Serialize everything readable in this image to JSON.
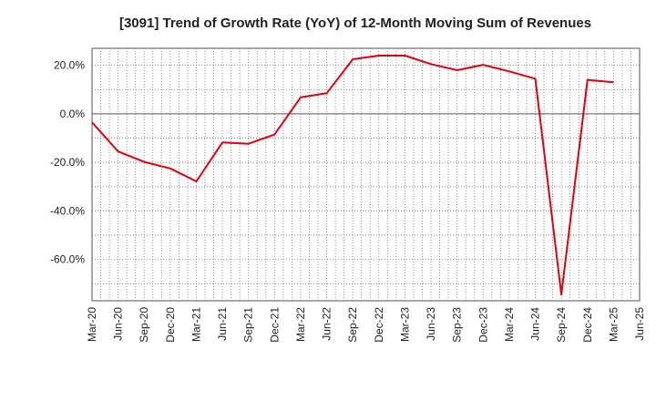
{
  "chart_data": {
    "type": "line",
    "title": "[3091]  Trend of Growth Rate (YoY) of 12-Month Moving Sum of Revenues",
    "xlabel": "",
    "ylabel": "",
    "x_tick_labels": [
      "Mar-20",
      "Jun-20",
      "Sep-20",
      "Dec-20",
      "Mar-21",
      "Jun-21",
      "Sep-21",
      "Dec-21",
      "Mar-22",
      "Jun-22",
      "Sep-22",
      "Dec-22",
      "Mar-23",
      "Jun-23",
      "Sep-23",
      "Dec-23",
      "Mar-24",
      "Jun-24",
      "Sep-24",
      "Dec-24",
      "Mar-25",
      "Jun-25"
    ],
    "y_ticks": [
      20,
      0,
      -20,
      -40,
      -60
    ],
    "y_tick_labels": [
      "20.0%",
      "0.0%",
      "-20.0%",
      "-40.0%",
      "-60.0%"
    ],
    "ylim": [
      -77,
      27
    ],
    "grid": true,
    "line_color": "#e3000f",
    "series": [
      {
        "x": [
          "Mar-20",
          "Jun-20",
          "Sep-20",
          "Dec-20",
          "Mar-21",
          "Jun-21",
          "Sep-21",
          "Dec-21",
          "Mar-22",
          "Jun-22",
          "Sep-22",
          "Dec-22",
          "Mar-23",
          "Jun-23",
          "Sep-23",
          "Dec-23",
          "Mar-24",
          "Jun-24",
          "Sep-24",
          "Dec-24",
          "Mar-25"
        ],
        "values": [
          -3.5,
          -15.5,
          -19.8,
          -22.5,
          -27.8,
          -11.8,
          -12.3,
          -8.5,
          6.8,
          8.5,
          22.5,
          24.0,
          24.0,
          20.5,
          18.0,
          20.2,
          17.5,
          14.5,
          -74.5,
          14.0,
          13.0
        ]
      }
    ]
  }
}
